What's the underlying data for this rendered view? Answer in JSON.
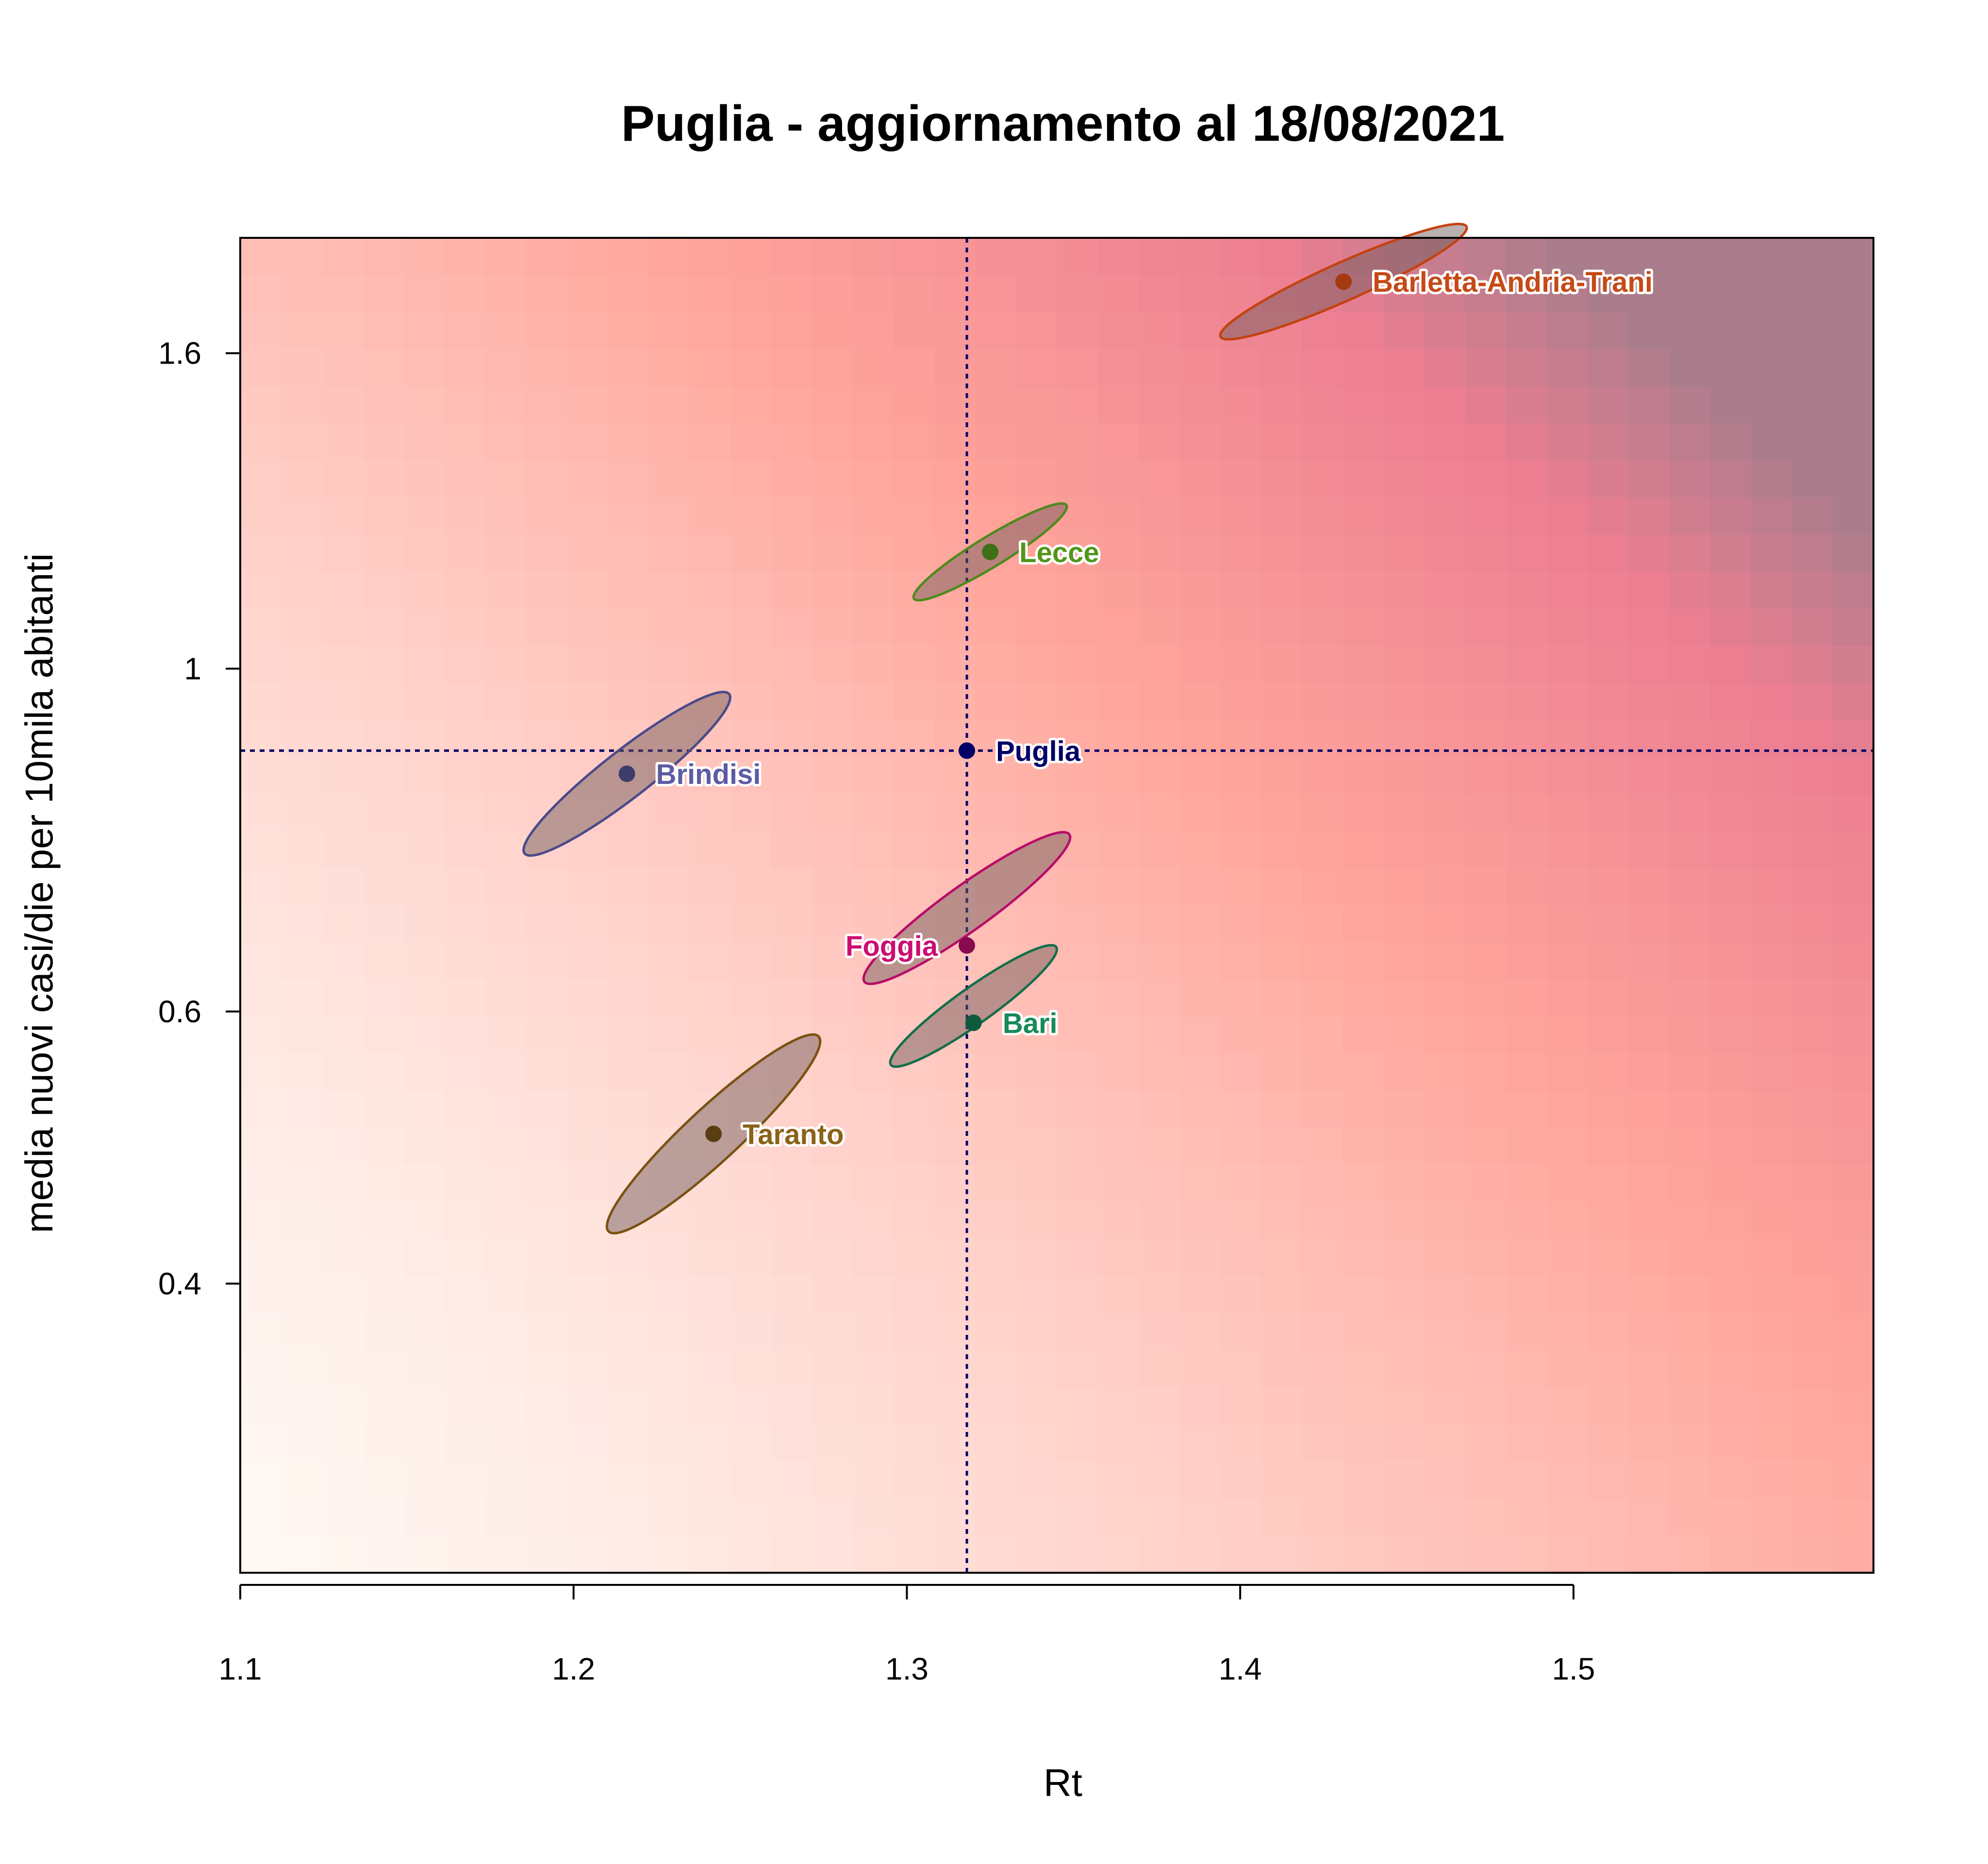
{
  "chart_data": {
    "type": "scatter",
    "title": "Puglia - aggiornamento al 18/08/2021",
    "xlabel": "Rt",
    "ylabel": "media nuovi casi/die per 10mila abitanti",
    "xlim": [
      1.1,
      1.59
    ],
    "ylim": [
      0.26,
      1.9
    ],
    "y_scale": "log",
    "x_ticks": [
      "1.1",
      "1.2",
      "1.3",
      "1.4",
      "1.5"
    ],
    "y_ticks": [
      "0.4",
      "0.6",
      "1",
      "1.6"
    ],
    "grid": false,
    "legend": "none",
    "reference_lines": {
      "x": 1.318,
      "y": 0.885,
      "color": "#000066",
      "style": "dotted"
    },
    "series": [
      {
        "name": "Barletta-Andria-Trani",
        "x": 1.431,
        "y": 1.78,
        "color": "#a33a12",
        "label_color": "#c44a16",
        "label_side": "right"
      },
      {
        "name": "Lecce",
        "x": 1.325,
        "y": 1.19,
        "color": "#3f6f16",
        "label_color": "#52961a",
        "label_side": "right"
      },
      {
        "name": "Puglia",
        "x": 1.318,
        "y": 0.885,
        "color": "#000066",
        "label_color": "#000066",
        "label_side": "right"
      },
      {
        "name": "Brindisi",
        "x": 1.216,
        "y": 0.855,
        "color": "#3d3d6b",
        "label_color": "#5c5ca3",
        "label_side": "right"
      },
      {
        "name": "Foggia",
        "x": 1.318,
        "y": 0.662,
        "color": "#8a0a4e",
        "label_color": "#cc0d72",
        "label_side": "left"
      },
      {
        "name": "Bari",
        "x": 1.32,
        "y": 0.59,
        "color": "#0f5a3c",
        "label_color": "#178a5a",
        "label_side": "right"
      },
      {
        "name": "Taranto",
        "x": 1.242,
        "y": 0.5,
        "color": "#5a3e12",
        "label_color": "#8a6218",
        "label_side": "right"
      }
    ],
    "ellipses": [
      {
        "name": "Barletta-Andria-Trani",
        "x": 1.431,
        "y": 1.78,
        "rx": 0.037,
        "ry_ratio": 1.09,
        "stroke": "#c4420f"
      },
      {
        "name": "Lecce",
        "x": 1.325,
        "y": 1.19,
        "rx": 0.023,
        "ry_ratio": 1.075,
        "stroke": "#4e8a1c"
      },
      {
        "name": "Brindisi",
        "x": 1.216,
        "y": 0.855,
        "rx": 0.031,
        "ry_ratio": 1.13,
        "stroke": "#4a4a8a"
      },
      {
        "name": "Foggia",
        "x": 1.318,
        "y": 0.7,
        "rx": 0.031,
        "ry_ratio": 1.12,
        "stroke": "#b80d68"
      },
      {
        "name": "Bari",
        "x": 1.32,
        "y": 0.605,
        "rx": 0.025,
        "ry_ratio": 1.095,
        "stroke": "#146e49"
      },
      {
        "name": "Taranto",
        "x": 1.242,
        "y": 0.5,
        "rx": 0.032,
        "ry_ratio": 1.16,
        "stroke": "#7a5212"
      }
    ]
  }
}
